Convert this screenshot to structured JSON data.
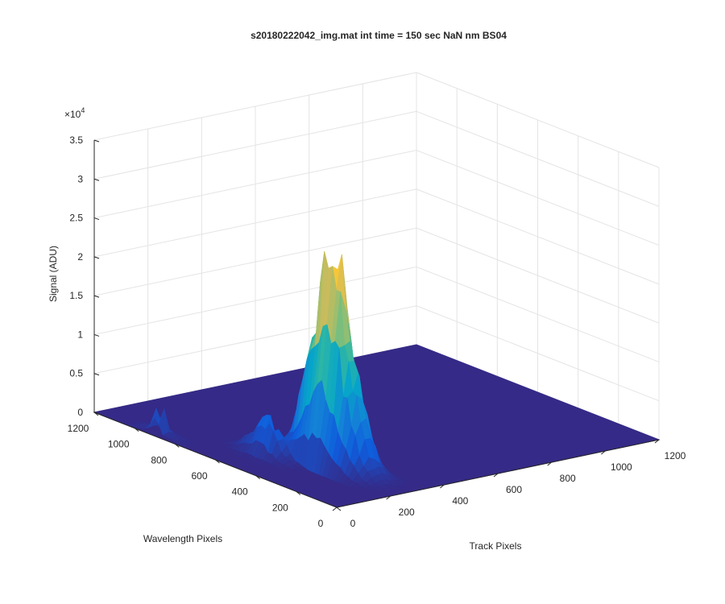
{
  "chart_data": {
    "type": "surface",
    "title": "s20180222042_img.mat int time = 150 sec  NaN nm BS04",
    "xlabel": "Track Pixels",
    "ylabel": "Wavelength Pixels",
    "zlabel": "Signal (ADU)",
    "z_exponent": "4",
    "xlim": [
      0,
      1200
    ],
    "ylim": [
      0,
      1200
    ],
    "zlim": [
      0,
      35000
    ],
    "x_ticks": [
      "0",
      "200",
      "400",
      "600",
      "800",
      "1000",
      "1200"
    ],
    "y_ticks": [
      "0",
      "200",
      "400",
      "600",
      "800",
      "1000",
      "1200"
    ],
    "z_ticks": [
      "0",
      "0.5",
      "1",
      "1.5",
      "2",
      "2.5",
      "3",
      "3.5"
    ],
    "grid": true,
    "colormap": "parula",
    "colors": [
      "#352a87",
      "#0f5cdd",
      "#1481d6",
      "#06a4ca",
      "#2eb7a4",
      "#87bf77",
      "#d1bb59",
      "#fec832",
      "#f9fb0e"
    ],
    "peak": {
      "track_pixel": 250,
      "wavelength_pixel": 350,
      "signal": 27000
    },
    "secondary_peaks": [
      {
        "track_pixel": 150,
        "wavelength_pixel": 550,
        "signal": 5000
      },
      {
        "track_pixel": 20,
        "wavelength_pixel": 900,
        "signal": 1200
      }
    ],
    "baseline_signal": 0
  }
}
